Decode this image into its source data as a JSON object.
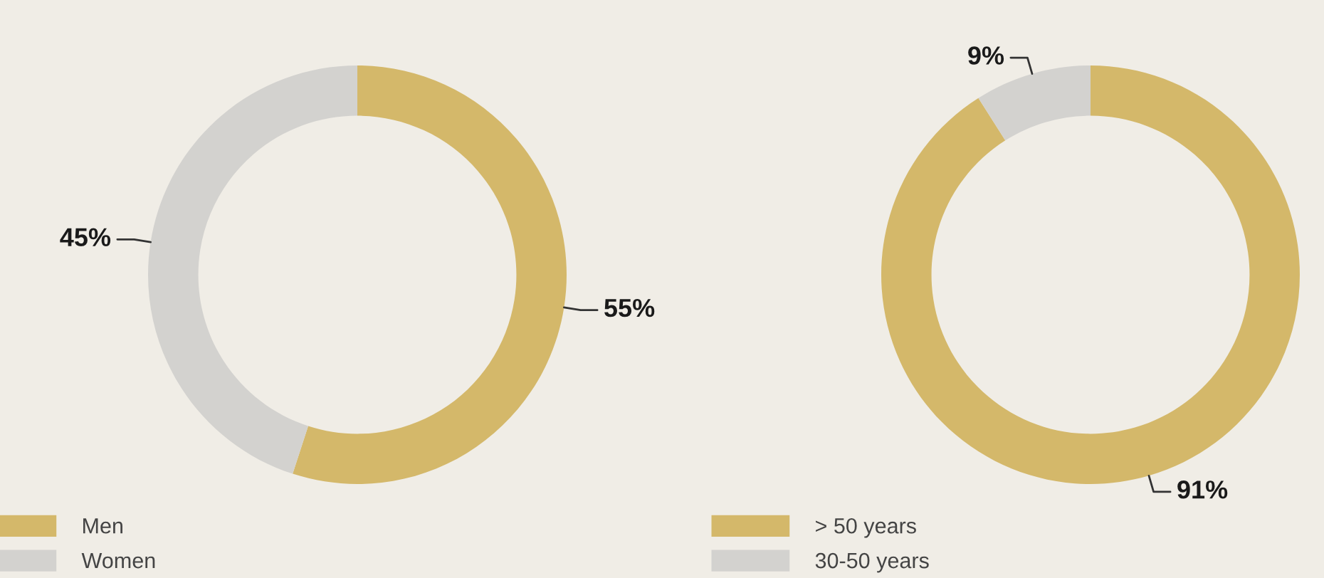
{
  "chart_data": [
    {
      "type": "donut",
      "categories": [
        "Men",
        "Women"
      ],
      "values": [
        55,
        45
      ],
      "value_labels": [
        "55%",
        "45%"
      ],
      "colors": [
        "#d4b86a",
        "#d3d2cf"
      ],
      "legend": "bottom left"
    },
    {
      "type": "donut",
      "categories": [
        "> 50 years",
        "30-50 years"
      ],
      "values": [
        91,
        9
      ],
      "value_labels": [
        "91%",
        "9%"
      ],
      "colors": [
        "#d4b86a",
        "#d3d2cf"
      ],
      "legend": "bottom left"
    }
  ]
}
